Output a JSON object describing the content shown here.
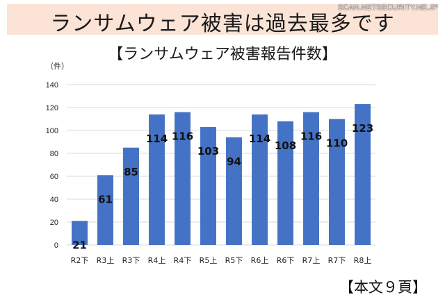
{
  "header": {
    "banner_title": "ランサムウェア被害は過去最多です",
    "watermark": "SCAN.NETSECURITY.NE.JP"
  },
  "footer": {
    "page_ref": "【本文９頁】"
  },
  "colors": {
    "bar": "#4472c4",
    "banner_bg": "#fbe3d6",
    "grid": "#d9d9d9"
  },
  "chart_data": {
    "type": "bar",
    "title": "【ランサムウェア被害報告件数】",
    "unit_label": "（件）",
    "categories": [
      "R2下",
      "R3上",
      "R3下",
      "R4上",
      "R4下",
      "R5上",
      "R5下",
      "R6上",
      "R6下",
      "R7上",
      "R7下",
      "R8上"
    ],
    "values": [
      21,
      61,
      85,
      114,
      116,
      103,
      94,
      114,
      108,
      116,
      110,
      123
    ],
    "ylim": [
      0,
      140
    ],
    "yticks": [
      0,
      20,
      40,
      60,
      80,
      100,
      120,
      140
    ],
    "grid": true,
    "data_labels": true
  }
}
